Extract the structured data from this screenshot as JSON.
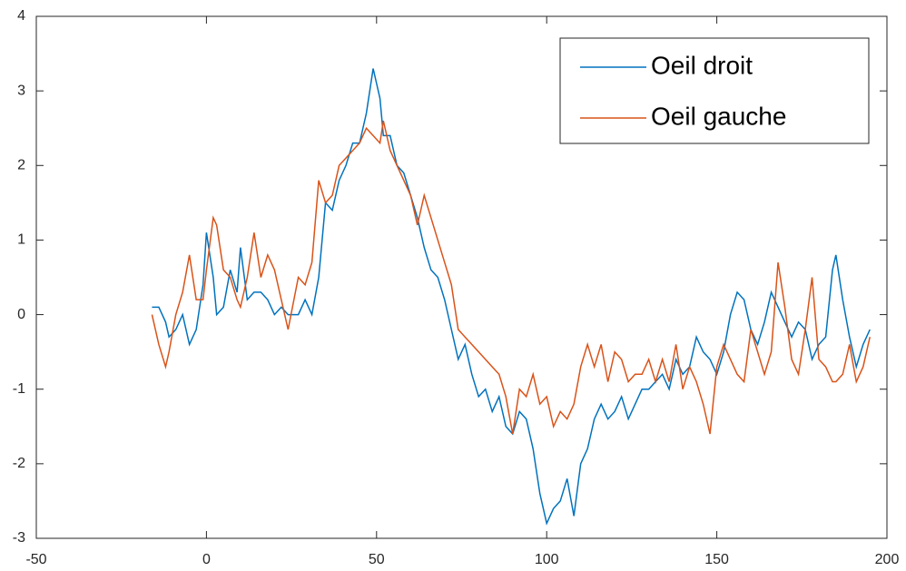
{
  "chart_data": {
    "type": "line",
    "x": [
      -16,
      -14,
      -12,
      -11,
      -9,
      -7,
      -5,
      -3,
      -1,
      0,
      2,
      3,
      5,
      7,
      9,
      10,
      12,
      14,
      16,
      18,
      20,
      22,
      24,
      27,
      29,
      31,
      33,
      35,
      37,
      39,
      41,
      43,
      45,
      47,
      49,
      51,
      52,
      54,
      56,
      58,
      60,
      62,
      64,
      66,
      68,
      70,
      72,
      74,
      76,
      78,
      80,
      82,
      84,
      86,
      88,
      90,
      92,
      94,
      96,
      98,
      100,
      102,
      104,
      106,
      108,
      110,
      112,
      114,
      116,
      118,
      120,
      122,
      124,
      126,
      128,
      130,
      132,
      134,
      136,
      138,
      140,
      142,
      144,
      146,
      148,
      150,
      152,
      154,
      156,
      158,
      160,
      162,
      164,
      166,
      168,
      170,
      172,
      174,
      176,
      178,
      180,
      182,
      184,
      185,
      187,
      189,
      191,
      193,
      195
    ],
    "series": [
      {
        "name": "Oeil droit",
        "color": "#0072bd",
        "values": [
          0.1,
          0.1,
          -0.1,
          -0.3,
          -0.2,
          0,
          -0.4,
          -0.2,
          0.4,
          1.1,
          0.5,
          0,
          0.1,
          0.6,
          0.3,
          0.9,
          0.2,
          0.3,
          0.3,
          0.2,
          0,
          0.1,
          0,
          0,
          0.2,
          0,
          0.5,
          1.5,
          1.4,
          1.8,
          2.0,
          2.3,
          2.3,
          2.7,
          3.3,
          2.9,
          2.4,
          2.4,
          2.0,
          1.9,
          1.6,
          1.3,
          0.9,
          0.6,
          0.5,
          0.2,
          -0.2,
          -0.6,
          -0.4,
          -0.8,
          -1.1,
          -1.0,
          -1.3,
          -1.1,
          -1.5,
          -1.6,
          -1.3,
          -1.4,
          -1.8,
          -2.4,
          -2.8,
          -2.6,
          -2.5,
          -2.2,
          -2.7,
          -2.0,
          -1.8,
          -1.4,
          -1.2,
          -1.4,
          -1.3,
          -1.1,
          -1.4,
          -1.2,
          -1.0,
          -1.0,
          -0.9,
          -0.8,
          -1.0,
          -0.6,
          -0.8,
          -0.7,
          -0.3,
          -0.5,
          -0.6,
          -0.8,
          -0.5,
          0,
          0.3,
          0.2,
          -0.2,
          -0.4,
          -0.1,
          0.3,
          0.1,
          -0.1,
          -0.3,
          -0.1,
          -0.2,
          -0.6,
          -0.4,
          -0.3,
          0.6,
          0.8,
          0.2,
          -0.3,
          -0.7,
          -0.4,
          -0.2
        ]
      },
      {
        "name": "Oeil gauche",
        "color": "#d95319",
        "values": [
          0,
          -0.4,
          -0.7,
          -0.5,
          0,
          0.3,
          0.8,
          0.2,
          0.2,
          0.6,
          1.3,
          1.2,
          0.6,
          0.5,
          0.2,
          0.1,
          0.5,
          1.1,
          0.5,
          0.8,
          0.6,
          0.2,
          -0.2,
          0.5,
          0.4,
          0.7,
          1.8,
          1.5,
          1.6,
          2.0,
          2.1,
          2.2,
          2.3,
          2.5,
          2.4,
          2.3,
          2.6,
          2.2,
          2.0,
          1.8,
          1.6,
          1.2,
          1.6,
          1.3,
          1.0,
          0.7,
          0.4,
          -0.2,
          -0.3,
          -0.4,
          -0.5,
          -0.6,
          -0.7,
          -0.8,
          -1.1,
          -1.6,
          -1.0,
          -1.1,
          -0.8,
          -1.2,
          -1.1,
          -1.5,
          -1.3,
          -1.4,
          -1.2,
          -0.7,
          -0.4,
          -0.7,
          -0.4,
          -0.9,
          -0.5,
          -0.6,
          -0.9,
          -0.8,
          -0.8,
          -0.6,
          -0.9,
          -0.6,
          -0.9,
          -0.4,
          -1.0,
          -0.7,
          -0.9,
          -1.2,
          -1.6,
          -0.7,
          -0.4,
          -0.6,
          -0.8,
          -0.9,
          -0.2,
          -0.5,
          -0.8,
          -0.5,
          0.7,
          0.1,
          -0.6,
          -0.8,
          -0.2,
          0.5,
          -0.6,
          -0.7,
          -0.9,
          -0.9,
          -0.8,
          -0.4,
          -0.9,
          -0.7,
          -0.3
        ]
      }
    ],
    "xlim": [
      -50,
      200
    ],
    "xticks": [
      -50,
      0,
      50,
      100,
      150,
      200
    ],
    "ylim": [
      -3,
      4
    ],
    "yticks": [
      -3,
      -2,
      -1,
      0,
      1,
      2,
      3,
      4
    ],
    "legend": "northeast"
  }
}
